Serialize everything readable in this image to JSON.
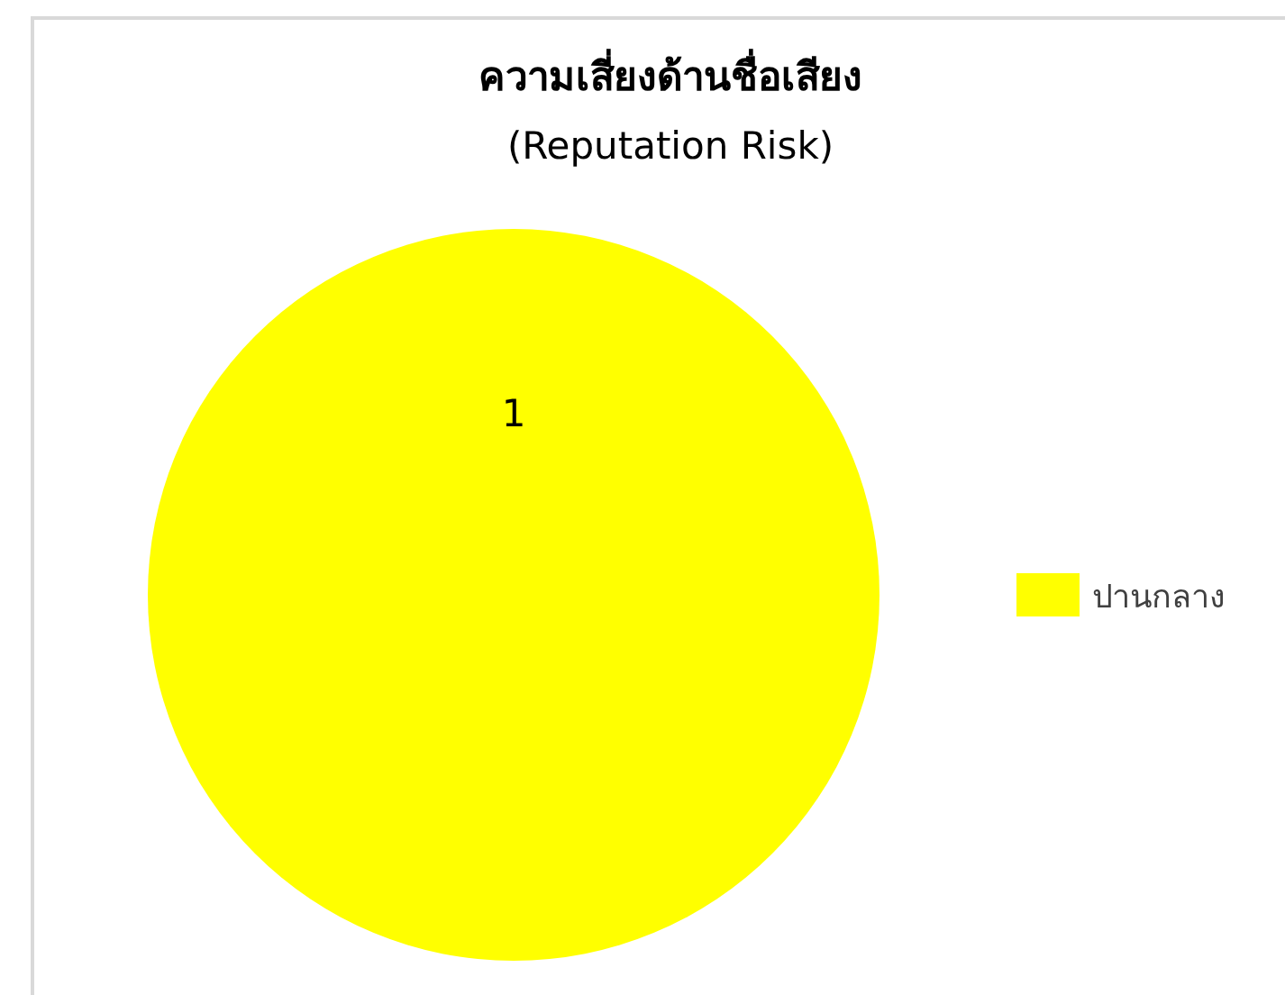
{
  "chart_data": {
    "type": "pie",
    "title": "ความเสี่ยงด้านชื่อเสียง",
    "subtitle": "(Reputation Risk)",
    "categories": [
      "ปานกลาง"
    ],
    "values": [
      1
    ],
    "colors": [
      "#ffff00"
    ],
    "data_labels": true,
    "legend": "right"
  }
}
